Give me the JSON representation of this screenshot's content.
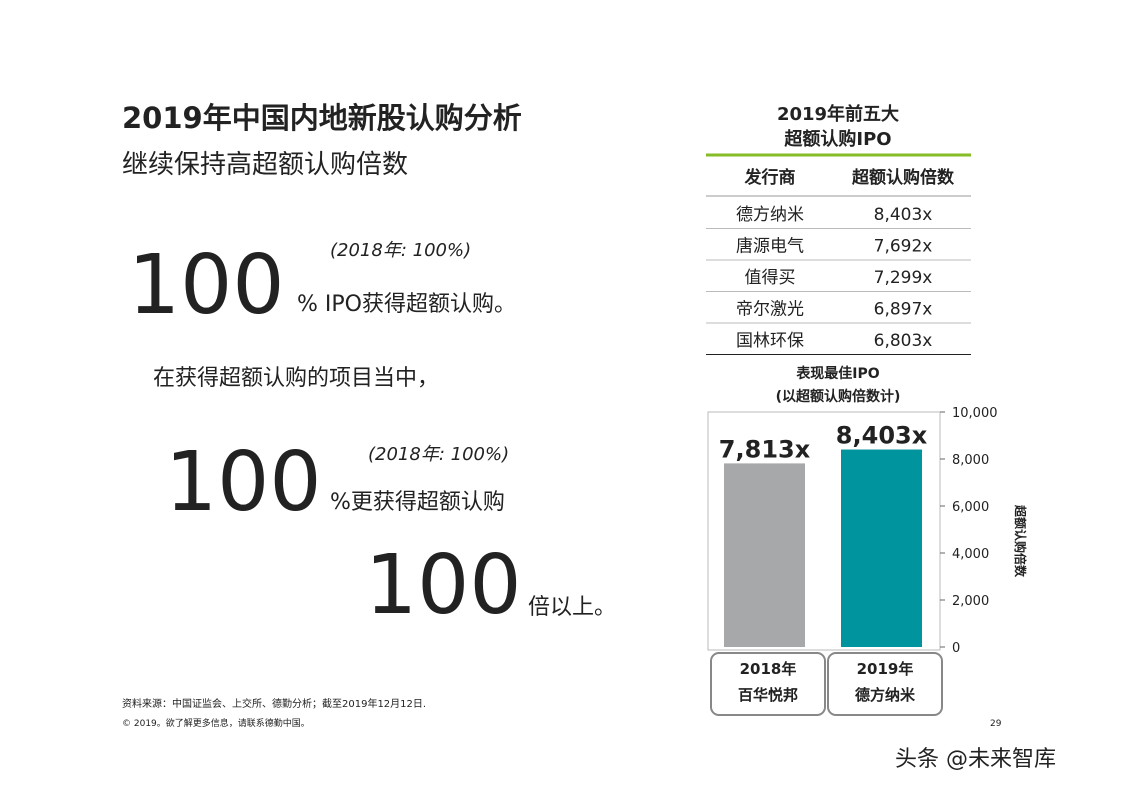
{
  "header": {
    "title": "2019年中国内地新股认购分析",
    "subtitle": "继续保持高超额认购倍数"
  },
  "highlights": [
    {
      "number": 100,
      "text": "% IPO获得超额认购。",
      "note": "(2018年: 100%)"
    },
    {
      "intro": "在获得超额认购的项目当中，"
    },
    {
      "number": 100,
      "text": "%更获得超额认购",
      "note": "(2018年: 100%)"
    },
    {
      "number": 100,
      "text": "倍以上。"
    }
  ],
  "table": {
    "title": [
      "2019年前五大",
      "超额认购IPO"
    ],
    "columns": [
      "发行商",
      "超额认购倍数"
    ],
    "rows": [
      [
        "德方纳米",
        "8,403x"
      ],
      [
        "唐源电气",
        "7,692x"
      ],
      [
        "值得买",
        "7,299x"
      ],
      [
        "帝尔激光",
        "6,897x"
      ],
      [
        "国林环保",
        "6,803x"
      ]
    ]
  },
  "chart": {
    "type": "bar",
    "title": [
      "表现最佳IPO",
      "(以超额认购倍数计)"
    ],
    "y_label": "超额认购倍数",
    "categories": [
      "2018年",
      "2019年"
    ],
    "category_names": [
      "百华悦邦",
      "德方纳米"
    ],
    "values": [
      7813,
      8403
    ],
    "value_labels": [
      "7,813x",
      "8,403x"
    ],
    "colors": [
      "#a7a8aa",
      "#00959e"
    ],
    "ylim": [
      0,
      10000
    ],
    "yticks": [
      0,
      {
        "value": 2000,
        "label": "2,000"
      },
      {
        "value": 4000,
        "label": "4,000"
      },
      {
        "value": 6000,
        "label": "6,000"
      },
      {
        "value": 8000,
        "label": "8,000"
      },
      {
        "value": 10000,
        "label": "10,000"
      }
    ]
  },
  "footer": {
    "source": "资料来源：中国证监会、上交所、德勤分析；截至2019年12月12日.",
    "copyright": "© 2019。欲了解更多信息，请联系德勤中国。",
    "page": "29",
    "watermark": "头条 @未来智库"
  }
}
